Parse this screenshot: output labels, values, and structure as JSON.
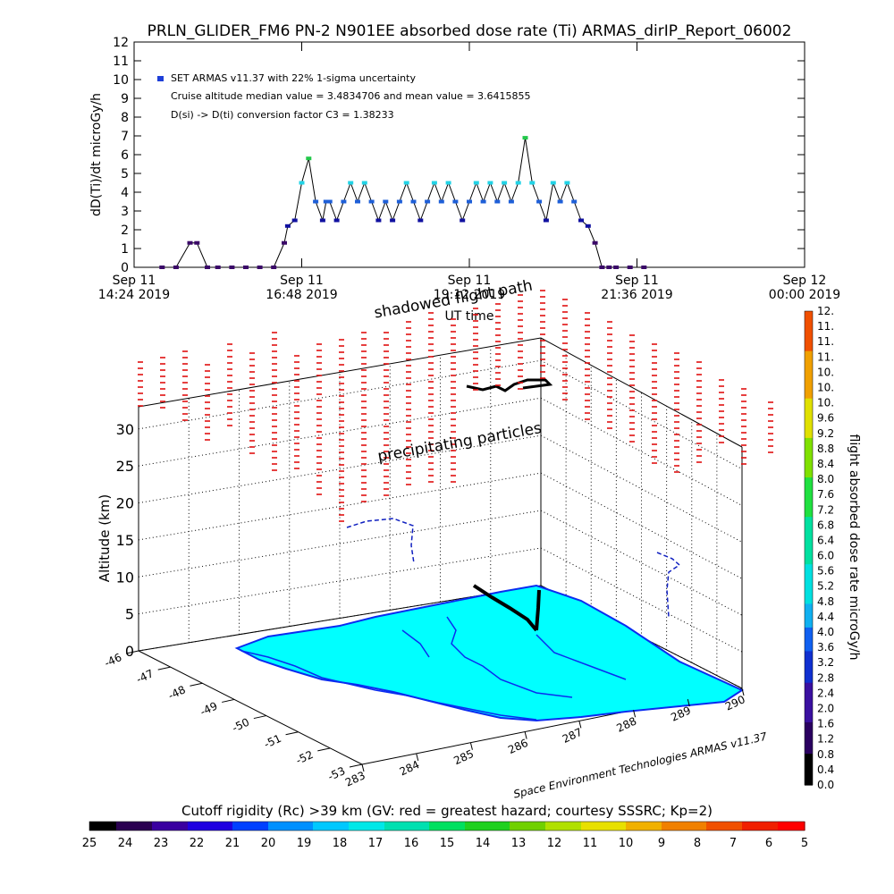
{
  "chart_data": [
    {
      "type": "line",
      "title": "PRLN_GLIDER_FM6 PN-2 N901EE absorbed dose rate (Ti) ARMAS_dirIP_Report_06002",
      "ylabel": "dD(Ti)/dt microGy/h",
      "xlabel": "UT time",
      "ylim": [
        0,
        12
      ],
      "yticks": [
        "0",
        "1",
        "2",
        "3",
        "4",
        "5",
        "6",
        "7",
        "8",
        "9",
        "10",
        "11",
        "12"
      ],
      "xticks": [
        {
          "top": "Sep 11",
          "bottom": "14:24 2019"
        },
        {
          "top": "Sep 11",
          "bottom": "16:48 2019"
        },
        {
          "top": "Sep 11",
          "bottom": "19:12 2019"
        },
        {
          "top": "Sep 11",
          "bottom": "21:36 2019"
        },
        {
          "top": "Sep 12",
          "bottom": "00:00 2019"
        }
      ],
      "xrange_hours": [
        14.4,
        24.0
      ],
      "annotations": [
        "SET ARMAS v11.37 with 22% 1-sigma uncertainty",
        "Cruise altitude median value = 3.4834706 and mean value = 3.6415855",
        "D(si) -> D(ti) conversion factor C3 = 1.38233"
      ],
      "legend": "top-left",
      "series": [
        {
          "x": [
            14.8,
            15.0,
            15.2,
            15.3,
            15.45,
            15.6,
            15.8,
            16.0,
            16.2,
            16.4,
            16.55,
            16.6,
            16.7,
            16.8,
            16.9,
            17.0,
            17.1,
            17.15,
            17.2,
            17.3,
            17.4,
            17.5,
            17.6,
            17.7,
            17.8,
            17.9,
            18.0,
            18.1,
            18.2,
            18.3,
            18.4,
            18.5,
            18.6,
            18.7,
            18.8,
            18.9,
            19.0,
            19.1,
            19.2,
            19.3,
            19.4,
            19.5,
            19.6,
            19.7,
            19.8,
            19.9,
            20.0,
            20.1,
            20.2,
            20.3,
            20.4,
            20.5,
            20.6,
            20.7,
            20.8,
            20.9,
            21.0,
            21.1,
            21.2,
            21.3,
            21.5,
            21.7
          ],
          "y": [
            0,
            0,
            1.3,
            1.3,
            0,
            0,
            0,
            0,
            0,
            0,
            1.3,
            2.2,
            2.5,
            4.5,
            5.8,
            3.5,
            2.5,
            3.5,
            3.5,
            2.5,
            3.5,
            4.5,
            3.5,
            4.5,
            3.5,
            2.5,
            3.5,
            2.5,
            3.5,
            4.5,
            3.5,
            2.5,
            3.5,
            4.5,
            3.5,
            4.5,
            3.5,
            2.5,
            3.5,
            4.5,
            3.5,
            4.5,
            3.5,
            4.5,
            3.5,
            4.5,
            6.9,
            4.5,
            3.5,
            2.5,
            4.5,
            3.5,
            4.5,
            3.5,
            2.5,
            2.2,
            1.3,
            0,
            0,
            0,
            0,
            0
          ]
        }
      ]
    },
    {
      "type": "scatter",
      "title": "",
      "xlabel": "",
      "ylabel": "Altitude (km)",
      "zticks": [
        "0",
        "5",
        "10",
        "15",
        "20",
        "25",
        "30"
      ],
      "latitude_ticks": [
        "-46",
        "-47",
        "-48",
        "-49",
        "-50",
        "-51",
        "-52",
        "-53"
      ],
      "longitude_ticks": [
        "283",
        "284",
        "285",
        "286",
        "287",
        "288",
        "289",
        "290"
      ],
      "annotations": [
        "shadowed flight path",
        "precipitating particles"
      ],
      "credit": "Space Environment Technologies ARMAS v11.37",
      "colorbar_right": {
        "label": "flight absorbed dose rate microGy/h",
        "ticks": [
          "0.0",
          "0.4",
          "0.8",
          "1.2",
          "1.6",
          "2.0",
          "2.4",
          "2.8",
          "3.2",
          "3.6",
          "4.0",
          "4.4",
          "4.8",
          "5.2",
          "5.6",
          "6.0",
          "6.4",
          "6.8",
          "7.2",
          "7.6",
          "8.0",
          "8.4",
          "8.8",
          "9.2",
          "9.6",
          "10.",
          "10.",
          "10.",
          "11.",
          "11.",
          "11.",
          "12."
        ]
      },
      "colorbar_bottom": {
        "label": "Cutoff rigidity (Rc) >39 km (GV: red = greatest hazard; courtesy SSSRC; Kp=2)",
        "ticks": [
          "25",
          "24",
          "23",
          "22",
          "21",
          "20",
          "19",
          "18",
          "17",
          "16",
          "15",
          "14",
          "13",
          "12",
          "11",
          "10",
          "9",
          "8",
          "7",
          "6",
          "5"
        ]
      }
    }
  ],
  "colors": {
    "track": "#000000",
    "cyan_marker": "#22d3e6",
    "blue_marker": "#1e5fd8",
    "navy_marker": "#1010a0",
    "purple_marker": "#3a0868",
    "green_marker": "#22c84a",
    "land": "#00ffff",
    "coast": "#0a2cf0",
    "particles": "#e01010"
  }
}
